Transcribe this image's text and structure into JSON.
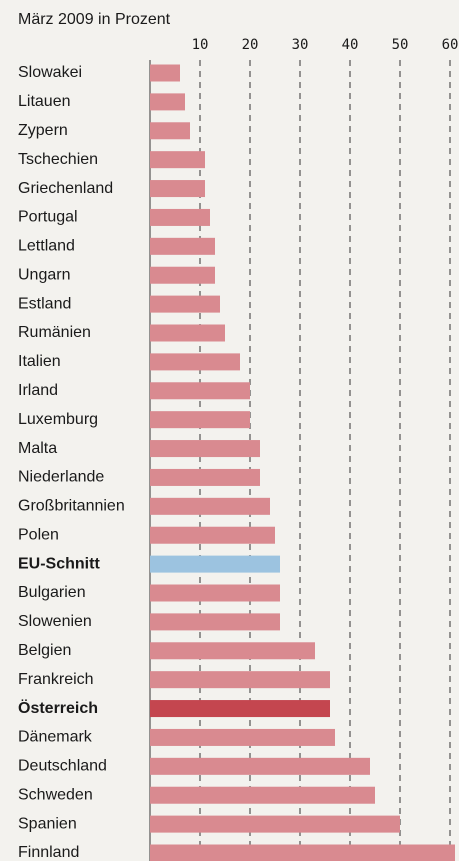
{
  "chart_data": {
    "type": "bar",
    "orientation": "horizontal",
    "subtitle": "März 2009 in Prozent",
    "categories": [
      "Slowakei",
      "Litauen",
      "Zypern",
      "Tschechien",
      "Griechenland",
      "Portugal",
      "Lettland",
      "Ungarn",
      "Estland",
      "Rumänien",
      "Italien",
      "Irland",
      "Luxemburg",
      "Malta",
      "Niederlande",
      "Großbritannien",
      "Polen",
      "EU-Schnitt",
      "Bulgarien",
      "Slowenien",
      "Belgien",
      "Frankreich",
      "Österreich",
      "Dänemark",
      "Deutschland",
      "Schweden",
      "Spanien",
      "Finnland"
    ],
    "values": [
      6,
      7,
      8,
      11,
      11,
      12,
      13,
      13,
      14,
      15,
      18,
      20,
      20,
      22,
      22,
      24,
      25,
      26,
      26,
      26,
      33,
      36,
      36,
      37,
      44,
      45,
      50,
      61
    ],
    "color": "#d98a90",
    "colors": [
      "#d98a90",
      "#d98a90",
      "#d98a90",
      "#d98a90",
      "#d98a90",
      "#d98a90",
      "#d98a90",
      "#d98a90",
      "#d98a90",
      "#d98a90",
      "#d98a90",
      "#d98a90",
      "#d98a90",
      "#d98a90",
      "#d98a90",
      "#d98a90",
      "#d98a90",
      "#9cc3e0",
      "#d98a90",
      "#d98a90",
      "#d98a90",
      "#d98a90",
      "#c4464f",
      "#d98a90",
      "#d98a90",
      "#d98a90",
      "#d98a90",
      "#d98a90"
    ],
    "xlim": [
      0,
      60
    ],
    "xticks": [
      10,
      20,
      30,
      40,
      50,
      60
    ],
    "grid": true
  }
}
